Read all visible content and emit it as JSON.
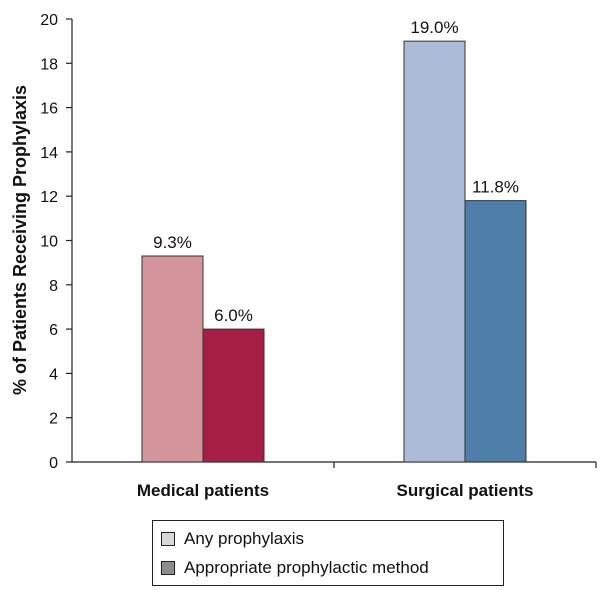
{
  "chart_data": {
    "type": "bar",
    "categories": [
      "Medical patients",
      "Surgical patients"
    ],
    "series": [
      {
        "name": "Any prophylaxis",
        "values": [
          9.3,
          19.0
        ],
        "colors": [
          "#d4949b",
          "#aebbd6"
        ],
        "labels": [
          "9.3%",
          "19.0%"
        ]
      },
      {
        "name": "Appropriate prophylactic method",
        "values": [
          6.0,
          11.8
        ],
        "colors": [
          "#a51f45",
          "#4e7ea9"
        ],
        "labels": [
          "6.0%",
          "11.8%"
        ]
      }
    ],
    "ylabel": "% of Patients Receiving Prophylaxis",
    "xlabel": "",
    "ylim": [
      0,
      20
    ],
    "yticks": [
      0,
      2,
      4,
      6,
      8,
      10,
      12,
      14,
      16,
      18,
      20
    ],
    "legend_position": "bottom",
    "legend_swatches": [
      "#d7d7d7",
      "#8c8c8c"
    ],
    "grid": false
  }
}
